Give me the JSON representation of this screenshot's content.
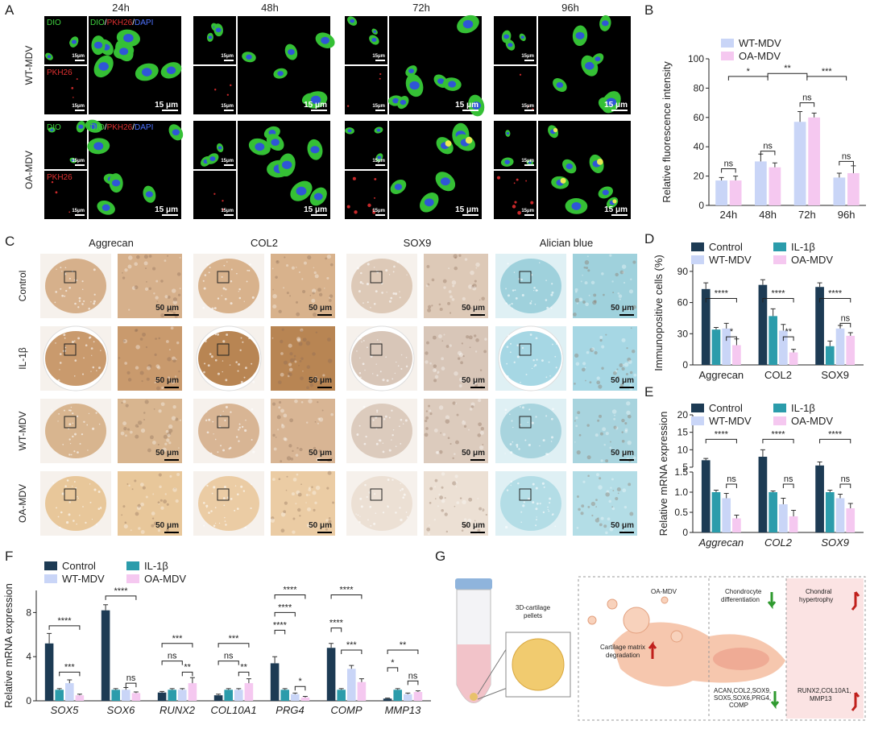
{
  "panel_labels": {
    "a": "A",
    "b": "B",
    "c": "C",
    "d": "D",
    "e": "E",
    "f": "F",
    "g": "G"
  },
  "panel_a": {
    "columns": [
      "24h",
      "48h",
      "72h",
      "96h"
    ],
    "rows": [
      "WT-MDV",
      "OA-MDV"
    ],
    "dio": "DIO",
    "pkh": "PKH26",
    "merge": [
      "DIO",
      "/",
      "PKH26",
      "/",
      "DAPI"
    ],
    "scale_small": "15μm",
    "scale_large": "15 μm"
  },
  "panel_c": {
    "columns": [
      "Aggrecan",
      "COL2",
      "SOX9",
      "Alician blue"
    ],
    "rows": [
      "Control",
      "IL-1β",
      "WT-MDV",
      "OA-MDV"
    ],
    "scale": "50 μm"
  },
  "chart_data": [
    {
      "type": "bar",
      "ylabel": "Relative fluorescence intensity",
      "categories": [
        "24h",
        "48h",
        "72h",
        "96h"
      ],
      "series": [
        {
          "name": "WT-MDV",
          "color": "#c9d5f7",
          "values": [
            17,
            30,
            57,
            19
          ],
          "errors": [
            2,
            5,
            7,
            3
          ]
        },
        {
          "name": "OA-MDV",
          "color": "#f5c8f0",
          "values": [
            17,
            26,
            60,
            22
          ],
          "errors": [
            3,
            3,
            3,
            5
          ]
        }
      ],
      "ylim": [
        0,
        100
      ],
      "yticks": [
        0,
        20,
        40,
        60,
        80,
        100
      ],
      "legend": "upper left",
      "annotations": [
        "ns",
        "ns",
        "ns",
        "ns",
        "*",
        "**",
        "***"
      ]
    },
    {
      "type": "bar",
      "ylabel": "Immunopositive cells (%)",
      "categories": [
        "Aggrecan",
        "COL2",
        "SOX9"
      ],
      "series": [
        {
          "name": "Control",
          "color": "#1d3b54",
          "values": [
            73,
            77,
            75
          ],
          "errors": [
            6,
            5,
            4
          ]
        },
        {
          "name": "IL-1β",
          "color": "#2b9cab",
          "values": [
            34,
            47,
            18
          ],
          "errors": [
            2,
            7,
            5
          ]
        },
        {
          "name": "WT-MDV",
          "color": "#c9d5f7",
          "values": [
            35,
            33,
            35
          ],
          "errors": [
            5,
            6,
            3
          ]
        },
        {
          "name": "OA-MDV",
          "color": "#f5c8f0",
          "values": [
            19,
            12,
            28
          ],
          "errors": [
            6,
            3,
            3
          ]
        }
      ],
      "ylim": [
        0,
        100
      ],
      "yticks": [
        0,
        30,
        60,
        90
      ],
      "legend": "top",
      "annotations": [
        "****",
        "*",
        "****",
        "**",
        "****",
        "ns"
      ]
    },
    {
      "type": "bar",
      "ylabel": "Relative mRNA expression",
      "categories": [
        "Aggrecan",
        "COL2",
        "SOX9"
      ],
      "category_style": "italic",
      "series": [
        {
          "name": "Control",
          "color": "#1d3b54",
          "values": [
            7.0,
            8.0,
            5.5
          ],
          "errors": [
            0.5,
            2,
            1
          ]
        },
        {
          "name": "IL-1β",
          "color": "#2b9cab",
          "values": [
            1.0,
            1.0,
            1.0
          ],
          "errors": [
            0.05,
            0.03,
            0.05
          ]
        },
        {
          "name": "WT-MDV",
          "color": "#c9d5f7",
          "values": [
            0.85,
            0.7,
            0.85
          ],
          "errors": [
            0.12,
            0.15,
            0.1
          ]
        },
        {
          "name": "OA-MDV",
          "color": "#f5c8f0",
          "values": [
            0.35,
            0.4,
            0.6
          ],
          "errors": [
            0.08,
            0.15,
            0.12
          ]
        }
      ],
      "axis_segments": [
        {
          "ylim": [
            0,
            1.5
          ],
          "yticks": [
            0,
            0.5,
            {
              "value": 1,
              "label": "1.0"
            },
            1.5
          ]
        },
        {
          "ylim": [
            5,
            20
          ],
          "yticks": [
            5,
            10,
            15,
            20
          ]
        }
      ],
      "legend": "top",
      "annotations": [
        "****",
        "ns",
        "****",
        "ns",
        "****",
        "ns"
      ]
    },
    {
      "type": "bar",
      "ylabel": "Relative mRNA expression",
      "categories": [
        "SOX5",
        "SOX6",
        "RUNX2",
        "COL10A1",
        "PRG4",
        "COMP",
        "MMP13"
      ],
      "category_style": "italic",
      "series": [
        {
          "name": "Control",
          "color": "#1d3b54",
          "values": [
            5.2,
            8.2,
            0.75,
            0.5,
            3.4,
            4.8,
            0.2
          ],
          "errors": [
            0.9,
            0.5,
            0.1,
            0.1,
            0.6,
            0.4,
            0.05
          ]
        },
        {
          "name": "IL-1β",
          "color": "#2b9cab",
          "values": [
            1.0,
            1.0,
            1.0,
            1.0,
            1.0,
            1.0,
            1.0
          ],
          "errors": [
            0.1,
            0.1,
            0.1,
            0.1,
            0.1,
            0.1,
            0.1
          ]
        },
        {
          "name": "WT-MDV",
          "color": "#c9d5f7",
          "values": [
            1.6,
            1.0,
            1.0,
            1.0,
            0.6,
            2.9,
            0.6
          ],
          "errors": [
            0.3,
            0.2,
            0.1,
            0.1,
            0.1,
            0.3,
            0.1
          ]
        },
        {
          "name": "OA-MDV",
          "color": "#f5c8f0",
          "values": [
            0.5,
            0.7,
            1.6,
            1.6,
            0.3,
            1.7,
            0.8
          ],
          "errors": [
            0.1,
            0.1,
            0.5,
            0.4,
            0.1,
            0.3,
            0.1
          ]
        }
      ],
      "ylim": [
        0,
        10
      ],
      "yticks": [
        0,
        4,
        8
      ],
      "legend": "upper left",
      "annotations": [
        "****",
        "***",
        "****",
        "ns",
        "***",
        "ns",
        "**",
        "***",
        "ns",
        "**",
        "****",
        "****",
        "****",
        "*",
        "****",
        "****",
        "***",
        "**",
        "*",
        "ns"
      ]
    }
  ],
  "panel_g": {
    "pellets": [
      "3D-cartilage",
      "pellets"
    ],
    "mdv": "OA-MDV",
    "differentiation": [
      "Chondrocyte",
      "differentiation"
    ],
    "hypertrophy": [
      "Chondral",
      "hypertrophy"
    ],
    "degradation": [
      "Cartilage matrix",
      "degradation"
    ],
    "down_genes": [
      "ACAN,COL2,SOX9,",
      "SOX5,SOX6,PRG4,",
      "COMP"
    ],
    "up_genes": [
      "RUNX2,COL10A1,",
      "MMP13"
    ]
  }
}
